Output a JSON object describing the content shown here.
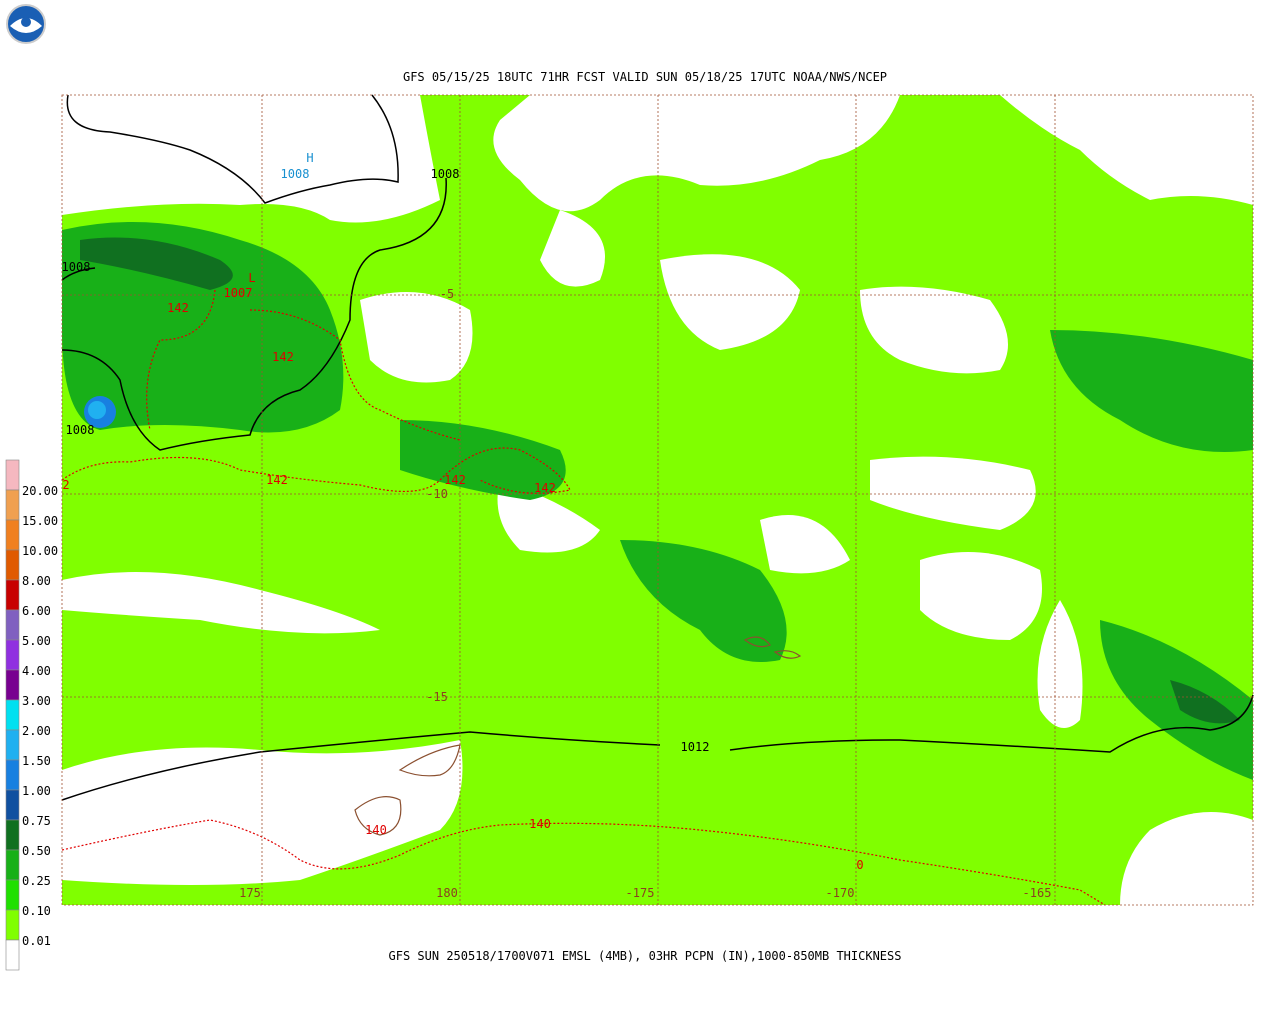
{
  "header": {
    "title": "GFS 05/15/25 18UTC 71HR FCST VALID SUN 05/18/25 17UTC NOAA/NWS/NCEP"
  },
  "footer": {
    "caption": "GFS SUN 250518/1700V071 EMSL (4MB), 03HR PCPN (IN),1000-850MB THICKNESS"
  },
  "map": {
    "longitude_labels": [
      "175",
      "180",
      "-175",
      "-170",
      "-165"
    ],
    "latitude_labels": [
      "-5",
      "-10",
      "-15"
    ],
    "pressure_labels": [
      "1008",
      "1008",
      "1008",
      "1007",
      "1008",
      "1012"
    ],
    "thickness_labels": [
      "142",
      "142",
      "142",
      "142",
      "142",
      "2",
      "140",
      "140",
      "0"
    ],
    "centers": [
      "H",
      "L"
    ]
  },
  "legend": {
    "colors": [
      "#f5b8c0",
      "#f0a050",
      "#f08020",
      "#e05a00",
      "#c80000",
      "#8060c0",
      "#9030e0",
      "#780090",
      "#00e0f0",
      "#20b0f0",
      "#1880e0",
      "#1050a0",
      "#107020",
      "#18b018",
      "#20e000",
      "#80ff00",
      "#ffffff"
    ],
    "labels": [
      "20.00",
      "15.00",
      "10.00",
      "8.00",
      "6.00",
      "5.00",
      "4.00",
      "3.00",
      "2.00",
      "1.50",
      "1.00",
      "0.75",
      "0.50",
      "0.25",
      "0.10",
      "0.01"
    ]
  }
}
